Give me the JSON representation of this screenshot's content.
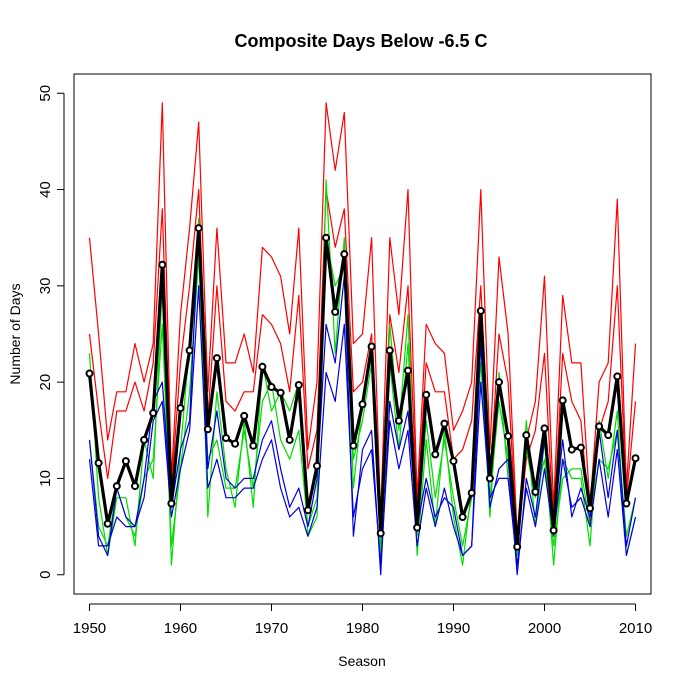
{
  "chart_data": {
    "type": "line",
    "title": "Composite Days Below -6.5 C",
    "xlabel": "Season",
    "ylabel": "Number of Days",
    "xlim": [
      1948.3,
      2011.7
    ],
    "ylim": [
      -2,
      52
    ],
    "xticks": [
      1950,
      1960,
      1970,
      1980,
      1990,
      2000,
      2010
    ],
    "yticks": [
      0,
      10,
      20,
      30,
      40,
      50
    ],
    "grid": false,
    "legend": "none",
    "x": [
      1950,
      1951,
      1952,
      1953,
      1954,
      1955,
      1956,
      1957,
      1958,
      1959,
      1960,
      1961,
      1962,
      1963,
      1964,
      1965,
      1966,
      1967,
      1968,
      1969,
      1970,
      1971,
      1972,
      1973,
      1974,
      1975,
      1976,
      1977,
      1978,
      1979,
      1980,
      1981,
      1982,
      1983,
      1984,
      1985,
      1986,
      1987,
      1988,
      1989,
      1990,
      1991,
      1992,
      1993,
      1994,
      1995,
      1996,
      1997,
      1998,
      1999,
      2000,
      2001,
      2002,
      2003,
      2004,
      2005,
      2006,
      2007,
      2008,
      2009,
      2010
    ],
    "series": [
      {
        "color": "#ff0000",
        "values": [
          35,
          25,
          14,
          19,
          19,
          24,
          20,
          24,
          49,
          10,
          27,
          36,
          47,
          19,
          36,
          22,
          22,
          25,
          21,
          34,
          33,
          31,
          25,
          36,
          13,
          20,
          49,
          42,
          48,
          24,
          25,
          35,
          6,
          35,
          27,
          40,
          8,
          26,
          24,
          23,
          15,
          17,
          20,
          40,
          13,
          33,
          25,
          4,
          14,
          18,
          31,
          7,
          29,
          22,
          22,
          7,
          20,
          22,
          39,
          9,
          24
        ],
        "width": 1.2
      },
      {
        "color": "#ff0000",
        "values": [
          25,
          17,
          10,
          17,
          17,
          20,
          17,
          22,
          38,
          9,
          22,
          30,
          40,
          16,
          30,
          18,
          17,
          19,
          19,
          27,
          26,
          24,
          19,
          29,
          11,
          15,
          40,
          34,
          38,
          19,
          20,
          25,
          5,
          27,
          21,
          30,
          7,
          22,
          19,
          19,
          12,
          13,
          16,
          30,
          10,
          25,
          20,
          3,
          12,
          15,
          23,
          5,
          23,
          18,
          16,
          5,
          15,
          18,
          30,
          8,
          18
        ],
        "width": 1.2
      },
      {
        "color": "#00dd00",
        "values": [
          23,
          8,
          2,
          8,
          8,
          3,
          14,
          10,
          30,
          1,
          13,
          24,
          37,
          6,
          19,
          11,
          7,
          16,
          7,
          22,
          17,
          19,
          17,
          20,
          4,
          6,
          41,
          23,
          35,
          9,
          18,
          23,
          3,
          26,
          15,
          27,
          2,
          14,
          5,
          15,
          6,
          1,
          9,
          24,
          6,
          21,
          10,
          2,
          16,
          5,
          14,
          1,
          12,
          10,
          10,
          3,
          16,
          10,
          17,
          2,
          6
        ],
        "width": 1.2
      },
      {
        "color": "#00dd00",
        "values": [
          14,
          5,
          3,
          9,
          6,
          4,
          10,
          12,
          26,
          3,
          11,
          19,
          33,
          12,
          14,
          9,
          9,
          15,
          9,
          18,
          20,
          14,
          12,
          15,
          5,
          8,
          35,
          30,
          32,
          12,
          16,
          22,
          2,
          22,
          13,
          24,
          4,
          16,
          8,
          14,
          8,
          3,
          8,
          22,
          8,
          18,
          12,
          3,
          13,
          8,
          12,
          3,
          10,
          11,
          11,
          5,
          12,
          11,
          15,
          4,
          8
        ],
        "width": 1.2
      },
      {
        "color": "#0000dd",
        "values": [
          14,
          4,
          2,
          9,
          6,
          5,
          10,
          18,
          20,
          7,
          13,
          16,
          36,
          11,
          17,
          10,
          9,
          10,
          10,
          14,
          16,
          11,
          7,
          9,
          5,
          10,
          26,
          22,
          31,
          4,
          13,
          15,
          0,
          18,
          13,
          17,
          5,
          10,
          6,
          8,
          7,
          2,
          3,
          24,
          7,
          11,
          12,
          0,
          10,
          6,
          14,
          5,
          14,
          6,
          9,
          6,
          15,
          8,
          15,
          3,
          8
        ],
        "width": 1.2
      },
      {
        "color": "#0000dd",
        "values": [
          12,
          3,
          3,
          6,
          5,
          5,
          8,
          16,
          18,
          6,
          11,
          15,
          30,
          9,
          12,
          8,
          8,
          9,
          9,
          12,
          14,
          9,
          6,
          7,
          4,
          7,
          21,
          18,
          26,
          6,
          11,
          13,
          1,
          16,
          11,
          15,
          3,
          9,
          5,
          9,
          5,
          2,
          3,
          20,
          8,
          10,
          10,
          1,
          9,
          5,
          11,
          4,
          12,
          7,
          8,
          5,
          12,
          6,
          13,
          2,
          6
        ],
        "width": 1.2
      },
      {
        "color": "#000000",
        "values": [
          20.9,
          11.6,
          5.3,
          9.2,
          11.8,
          9.2,
          14.0,
          16.8,
          32.2,
          7.4,
          17.3,
          23.3,
          36.0,
          15.1,
          22.5,
          14.2,
          13.6,
          16.5,
          13.4,
          21.6,
          19.5,
          18.9,
          14.0,
          19.7,
          6.7,
          11.3,
          35.0,
          27.3,
          33.3,
          13.4,
          17.7,
          23.7,
          4.3,
          23.3,
          16.0,
          21.2,
          4.9,
          18.7,
          12.5,
          15.7,
          11.8,
          6.0,
          8.5,
          27.4,
          10.0,
          20.0,
          14.4,
          2.9,
          14.5,
          8.6,
          15.2,
          4.6,
          18.1,
          13.0,
          13.2,
          6.9,
          15.4,
          14.5,
          20.6,
          7.4,
          12.1
        ],
        "width": 3.2,
        "markers": true
      }
    ]
  }
}
